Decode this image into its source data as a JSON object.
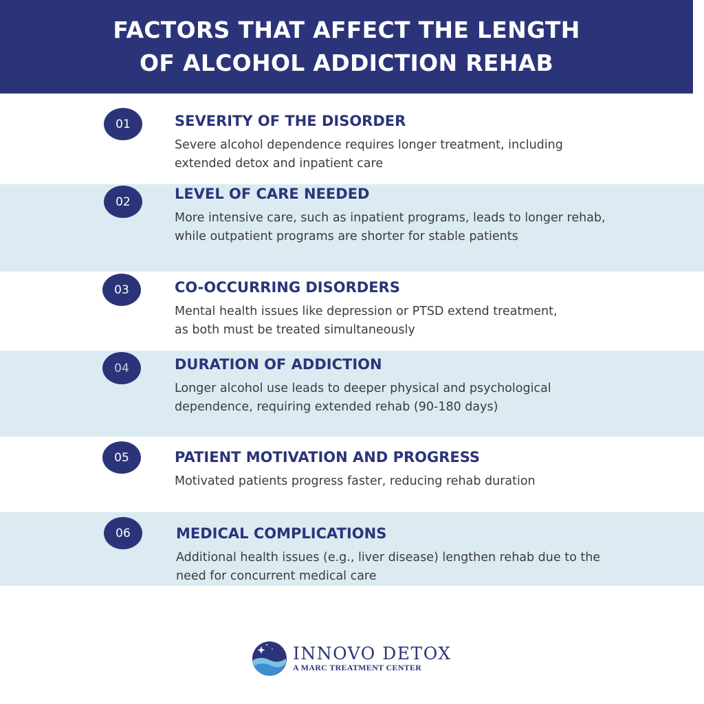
{
  "header": {
    "title_line1": "FACTORS THAT AFFECT THE LENGTH",
    "title_line2": "OF ALCOHOL ADDICTION REHAB"
  },
  "colors": {
    "primary": "#2c3479",
    "band": "#dcebf2",
    "text": "#3b3b3b"
  },
  "factors": [
    {
      "number": "01",
      "title": "SEVERITY OF THE DISORDER",
      "body": "Severe alcohol dependence requires longer treatment, including extended detox and inpatient care"
    },
    {
      "number": "02",
      "title": "LEVEL OF CARE NEEDED",
      "body": "More intensive care, such as inpatient programs, leads to longer rehab, while outpatient programs are shorter for stable patients"
    },
    {
      "number": "03",
      "title": "CO-OCCURRING DISORDERS",
      "body": "Mental health issues like depression or PTSD extend treatment, as both must be treated simultaneously"
    },
    {
      "number": "04",
      "title": "DURATION OF ADDICTION",
      "body": "Longer alcohol use leads to deeper physical and psychological dependence, requiring extended rehab (90-180 days)"
    },
    {
      "number": "05",
      "title": "PATIENT MOTIVATION AND PROGRESS",
      "body": "Motivated patients progress faster, reducing rehab duration"
    },
    {
      "number": "06",
      "title": "MEDICAL COMPLICATIONS",
      "body": "Additional health issues (e.g., liver disease) lengthen rehab due to the need for concurrent medical care"
    }
  ],
  "logo": {
    "name": "INNOVO DETOX",
    "tagline": "A MARC TREATMENT CENTER"
  }
}
